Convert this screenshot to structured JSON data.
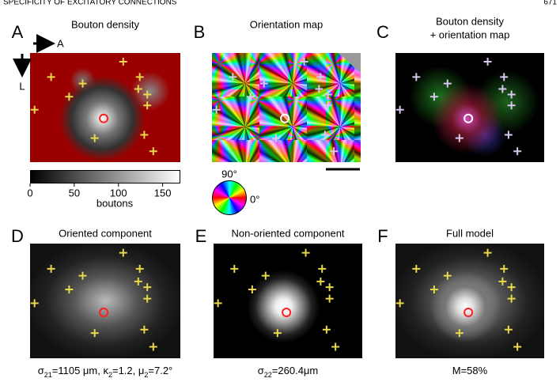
{
  "header": {
    "running_title": "SPECIFICITY OF EXCITATORY CONNECTIONS",
    "page": "671"
  },
  "panels": [
    {
      "letter": "A",
      "title": [
        "Bouton density"
      ]
    },
    {
      "letter": "B",
      "title": [
        "Orientation map"
      ]
    },
    {
      "letter": "C",
      "title": [
        "Bouton density",
        "+ orientation map"
      ]
    },
    {
      "letter": "D",
      "title": [
        "Oriented component"
      ],
      "caption": [
        "σ",
        "21",
        "=1105 μm, κ",
        "2",
        "=1.2, μ",
        "2",
        "=7.2°"
      ]
    },
    {
      "letter": "E",
      "title": [
        "Non-oriented component"
      ],
      "caption": [
        "σ",
        "22",
        "=260.4μm"
      ]
    },
    {
      "letter": "F",
      "title": [
        "Full model"
      ],
      "caption": [
        "M=58%"
      ]
    }
  ],
  "axes_labels": {
    "anterior": "A",
    "lateral": "L"
  },
  "colorbar": {
    "lim": [
      0,
      170
    ],
    "ticks": [
      0,
      50,
      100,
      150
    ],
    "label": "boutons"
  },
  "color_wheel": {
    "top_label": "90°",
    "right_label": "0°"
  }
}
